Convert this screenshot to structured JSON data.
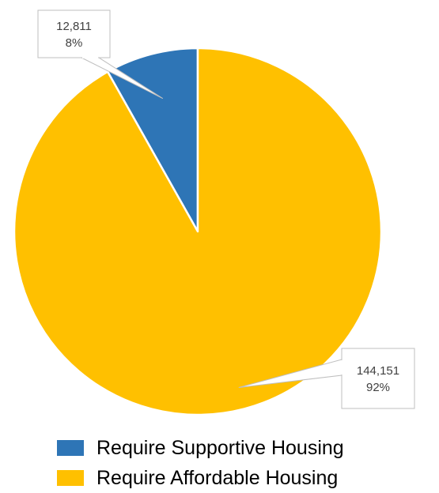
{
  "chart_data": {
    "type": "pie",
    "slices": [
      {
        "name": "Require Supportive Housing",
        "value": 12811,
        "value_label": "12,811",
        "percent_label": "8%",
        "color": "#2e75b6"
      },
      {
        "name": "Require Affordable Housing",
        "value": 144151,
        "value_label": "144,151",
        "percent_label": "92%",
        "color": "#ffc000"
      }
    ],
    "start_angle": "12 o'clock",
    "direction": "counter-clockwise",
    "legend_position": "bottom",
    "data_label_style": "callout boxes with leader lines"
  }
}
